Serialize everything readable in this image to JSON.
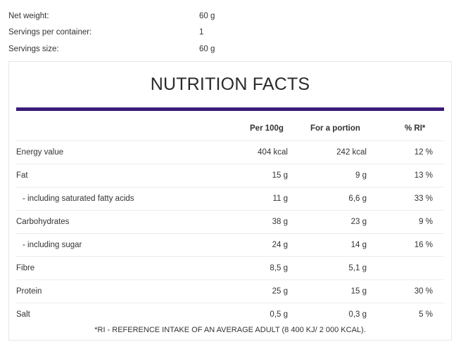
{
  "info": [
    {
      "label": "Net weight:",
      "value": "60 g"
    },
    {
      "label": "Servings per container:",
      "value": "1"
    },
    {
      "label": "Servings size:",
      "value": "60 g"
    }
  ],
  "nutrition": {
    "title": "NUTRITION FACTS",
    "accent_color": "#3a1c7a",
    "headers": {
      "per100": "Per 100g",
      "portion": "For a portion",
      "ri": "% RI*"
    },
    "rows": [
      {
        "name": "Energy value",
        "per100": "404 kcal",
        "portion": "242 kcal",
        "ri": "12 %"
      },
      {
        "name": "Fat",
        "per100": "15 g",
        "portion": "9 g",
        "ri": "13 %"
      },
      {
        "name": " - including saturated fatty acids",
        "per100": "11 g",
        "portion": "6,6 g",
        "ri": "33 %"
      },
      {
        "name": "Carbohydrates",
        "per100": "38 g",
        "portion": "23 g",
        "ri": "9 %"
      },
      {
        "name": " - including sugar",
        "per100": "24 g",
        "portion": "14 g",
        "ri": "16 %"
      },
      {
        "name": "Fibre",
        "per100": "8,5 g",
        "portion": "5,1 g",
        "ri": ""
      },
      {
        "name": "Protein",
        "per100": "25 g",
        "portion": "15 g",
        "ri": "30 %"
      },
      {
        "name": "Salt",
        "per100": "0,5 g",
        "portion": "0,3 g",
        "ri": "5 %"
      }
    ],
    "footnote": "*RI - REFERENCE INTAKE OF AN AVERAGE ADULT (8 400 KJ/ 2 000 KCAL)."
  }
}
